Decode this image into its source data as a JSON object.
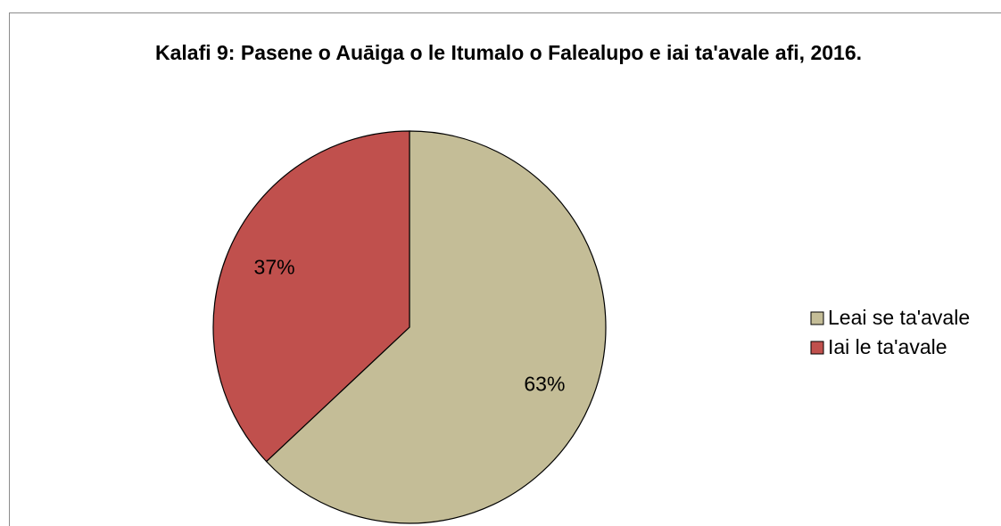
{
  "chart_data": {
    "type": "pie",
    "title": "Kalafi 9: Pasene o Auāiga o le Itumalo o Falealupo e iai ta'avale afi, 2016.",
    "categories": [
      "Leai se ta'avale",
      "Iai le ta'avale"
    ],
    "values": [
      63,
      37
    ],
    "value_labels": [
      "63%",
      "37%"
    ],
    "colors": [
      "#c4bd97",
      "#c0504d"
    ],
    "legend": "right"
  }
}
